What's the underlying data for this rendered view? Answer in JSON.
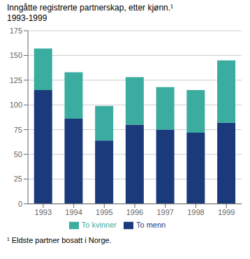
{
  "chart_data": {
    "type": "bar",
    "title": "Inngåtte registrerte partnerskap, etter kjønn.¹",
    "subtitle": "1993-1999",
    "categories": [
      "1993",
      "1994",
      "1995",
      "1996",
      "1997",
      "1998",
      "1999"
    ],
    "series": [
      {
        "name": "To menn",
        "color": "#1a3a7c",
        "values": [
          115,
          86,
          64,
          80,
          75,
          72,
          82
        ]
      },
      {
        "name": "To kvinner",
        "color": "#3aada0",
        "values": [
          42,
          47,
          35,
          48,
          43,
          43,
          63
        ]
      }
    ],
    "ylim": [
      0,
      175
    ],
    "yticks": [
      0,
      25,
      50,
      75,
      100,
      125,
      150,
      175
    ],
    "grid": true,
    "stacked": true,
    "legend": "bottom",
    "annotations": [
      "¹ Eldste partner bosatt i Norge."
    ]
  }
}
